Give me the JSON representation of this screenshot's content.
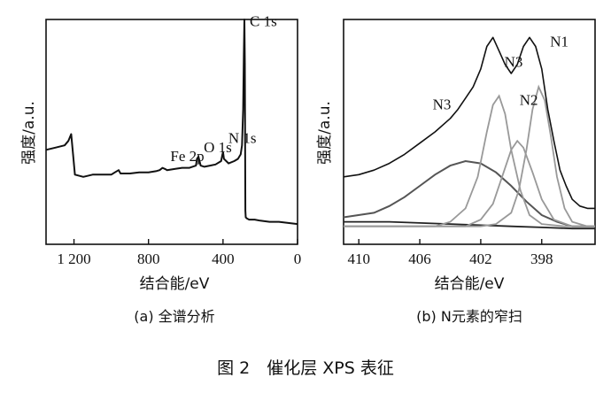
{
  "figure_caption": "图 2　催化层 XPS 表征",
  "chart_data": [
    {
      "id": "a",
      "type": "line",
      "caption": "(a) 全谱分析",
      "xlabel": "结合能/eV",
      "ylabel": "强度/a.u.",
      "xlim": [
        1350,
        0
      ],
      "ylim": [
        0,
        1
      ],
      "x_reversed": true,
      "xticks": [
        1200,
        800,
        400,
        0
      ],
      "xtick_labels": [
        "1 200",
        "800",
        "400",
        "0"
      ],
      "annotations": [
        {
          "text": "C 1s",
          "x": 285,
          "y": 0.97
        },
        {
          "text": "N 1s",
          "x": 400,
          "y": 0.45
        },
        {
          "text": "O 1s",
          "x": 532,
          "y": 0.41
        },
        {
          "text": "Fe 2p",
          "x": 711,
          "y": 0.37
        }
      ],
      "series": [
        {
          "x": [
            1350,
            1300,
            1250,
            1230,
            1215,
            1205,
            1195,
            1150,
            1100,
            1050,
            1000,
            980,
            960,
            950,
            900,
            850,
            800,
            760,
            740,
            725,
            711,
            700,
            660,
            620,
            580,
            545,
            540,
            532,
            520,
            500,
            470,
            440,
            410,
            403,
            400,
            395,
            370,
            340,
            320,
            305,
            298,
            292,
            288,
            285,
            283,
            280,
            278,
            272,
            260,
            230,
            200,
            150,
            100,
            50,
            0
          ],
          "y": [
            0.42,
            0.43,
            0.44,
            0.46,
            0.49,
            0.4,
            0.31,
            0.3,
            0.31,
            0.31,
            0.31,
            0.32,
            0.33,
            0.315,
            0.315,
            0.32,
            0.32,
            0.325,
            0.33,
            0.34,
            0.335,
            0.33,
            0.335,
            0.34,
            0.34,
            0.35,
            0.38,
            0.39,
            0.35,
            0.345,
            0.35,
            0.355,
            0.37,
            0.4,
            0.41,
            0.38,
            0.36,
            0.37,
            0.38,
            0.4,
            0.44,
            0.6,
            0.85,
            1.0,
            0.8,
            0.15,
            0.12,
            0.115,
            0.11,
            0.11,
            0.105,
            0.1,
            0.1,
            0.095,
            0.09
          ]
        }
      ]
    },
    {
      "id": "b",
      "type": "line",
      "caption": "(b) N元素的窄扫",
      "xlabel": "结合能/eV",
      "ylabel": "强度/a.u.",
      "xlim": [
        411,
        394.5
      ],
      "ylim": [
        0,
        1
      ],
      "x_reversed": true,
      "xticks": [
        410,
        406,
        402,
        398
      ],
      "xtick_labels": [
        "410",
        "406",
        "402",
        "398"
      ],
      "annotations": [
        {
          "text": "N1",
          "x": 397.8,
          "y": 0.88
        },
        {
          "text": "N3",
          "x": 400.8,
          "y": 0.79
        },
        {
          "text": "N2",
          "x": 399.8,
          "y": 0.62
        },
        {
          "text": "N3",
          "x": 405.5,
          "y": 0.6
        }
      ],
      "series": [
        {
          "name": "raw",
          "x": [
            411,
            410,
            409,
            408,
            407,
            406,
            405,
            404,
            403.5,
            403,
            402.5,
            402,
            401.6,
            401.2,
            400.8,
            400.4,
            400,
            399.6,
            399.2,
            398.8,
            398.4,
            398,
            397.6,
            397.2,
            396.8,
            396.4,
            396,
            395.5,
            395,
            394.5
          ],
          "y": [
            0.3,
            0.31,
            0.33,
            0.36,
            0.4,
            0.45,
            0.5,
            0.56,
            0.6,
            0.65,
            0.7,
            0.78,
            0.88,
            0.92,
            0.86,
            0.8,
            0.76,
            0.8,
            0.88,
            0.92,
            0.88,
            0.78,
            0.6,
            0.46,
            0.33,
            0.26,
            0.2,
            0.17,
            0.16,
            0.16
          ]
        },
        {
          "name": "N1",
          "x": [
            411,
            402,
            401,
            400,
            399.5,
            399,
            398.6,
            398.2,
            397.8,
            397.4,
            397,
            396.5,
            396,
            395,
            394.5
          ],
          "y": [
            0.08,
            0.08,
            0.09,
            0.14,
            0.24,
            0.42,
            0.6,
            0.7,
            0.64,
            0.48,
            0.3,
            0.16,
            0.1,
            0.08,
            0.08
          ]
        },
        {
          "name": "N2",
          "x": [
            411,
            403,
            402,
            401.2,
            400.6,
            400,
            399.6,
            399.2,
            398.6,
            398,
            397.2,
            396,
            394.5
          ],
          "y": [
            0.08,
            0.08,
            0.11,
            0.18,
            0.3,
            0.42,
            0.46,
            0.43,
            0.32,
            0.2,
            0.11,
            0.08,
            0.08
          ]
        },
        {
          "name": "N3",
          "x": [
            411,
            405,
            404,
            403,
            402.2,
            401.6,
            401.2,
            400.8,
            400.4,
            400,
            399.4,
            398.8,
            398,
            396.5,
            394.5
          ],
          "y": [
            0.08,
            0.08,
            0.1,
            0.16,
            0.3,
            0.5,
            0.62,
            0.66,
            0.58,
            0.42,
            0.24,
            0.13,
            0.09,
            0.08,
            0.08
          ]
        },
        {
          "name": "N3-broad",
          "x": [
            411,
            409,
            408,
            407,
            406,
            405,
            404,
            403,
            402,
            401,
            400,
            399,
            398,
            397,
            396,
            394.5
          ],
          "y": [
            0.12,
            0.14,
            0.17,
            0.21,
            0.26,
            0.31,
            0.35,
            0.37,
            0.36,
            0.32,
            0.26,
            0.19,
            0.13,
            0.1,
            0.08,
            0.08
          ]
        },
        {
          "name": "background",
          "x": [
            411,
            408,
            406,
            404,
            402,
            400,
            398,
            396,
            394.5
          ],
          "y": [
            0.1,
            0.1,
            0.095,
            0.09,
            0.085,
            0.08,
            0.075,
            0.07,
            0.07
          ]
        }
      ]
    }
  ]
}
